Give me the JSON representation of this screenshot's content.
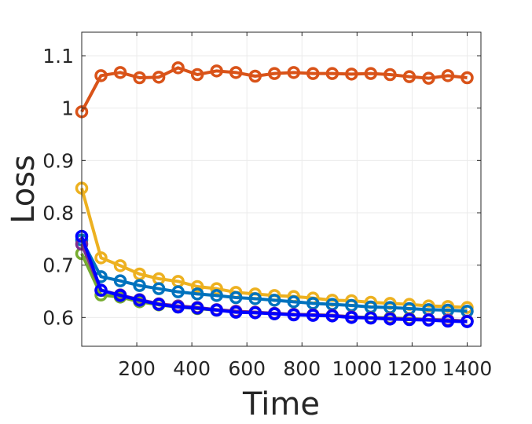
{
  "chart_data": {
    "type": "line",
    "title": "",
    "xlabel": "Time",
    "ylabel": "Loss",
    "xlim": [
      0,
      1450
    ],
    "ylim": [
      0.545,
      1.145
    ],
    "xticks": [
      200,
      400,
      600,
      800,
      1000,
      1200,
      1400
    ],
    "xtick_labels": [
      "200",
      "400",
      "600",
      "800",
      "1000",
      "1200",
      "1400"
    ],
    "yticks": [
      0.6,
      0.7,
      0.8,
      0.9,
      1.0,
      1.1
    ],
    "ytick_labels": [
      "0.6",
      "0.7",
      "0.8",
      "0.9",
      "1",
      "1.1"
    ],
    "grid": true,
    "legend": null,
    "x": [
      0,
      70,
      140,
      210,
      280,
      350,
      420,
      490,
      560,
      630,
      700,
      770,
      840,
      910,
      980,
      1050,
      1120,
      1190,
      1260,
      1330,
      1400
    ],
    "series": [
      {
        "color": "#D95319",
        "values": [
          0.993,
          1.062,
          1.068,
          1.058,
          1.059,
          1.077,
          1.064,
          1.071,
          1.068,
          1.061,
          1.066,
          1.068,
          1.066,
          1.066,
          1.065,
          1.066,
          1.064,
          1.06,
          1.057,
          1.062,
          1.058
        ]
      },
      {
        "color": "#EDB120",
        "values": [
          0.847,
          0.714,
          0.699,
          0.683,
          0.674,
          0.669,
          0.659,
          0.655,
          0.648,
          0.645,
          0.642,
          0.64,
          0.637,
          0.633,
          0.632,
          0.629,
          0.627,
          0.625,
          0.622,
          0.621,
          0.619
        ]
      },
      {
        "color": "#0072BD",
        "values": [
          0.748,
          0.678,
          0.67,
          0.661,
          0.655,
          0.649,
          0.645,
          0.642,
          0.638,
          0.636,
          0.633,
          0.63,
          0.627,
          0.625,
          0.623,
          0.62,
          0.619,
          0.617,
          0.615,
          0.614,
          0.612
        ]
      },
      {
        "color": "#77AC30",
        "values": [
          0.722,
          0.643,
          0.639,
          0.63,
          0.624,
          0.62,
          0.617,
          0.614,
          0.611,
          0.61,
          0.607,
          0.606,
          0.605,
          0.604,
          0.601,
          0.6,
          0.599,
          0.598,
          0.596,
          0.595,
          0.593
        ]
      },
      {
        "color": "#7E2F8E",
        "values": [
          0.74,
          0.652,
          0.643,
          0.634,
          0.626,
          0.622,
          0.619,
          0.615,
          0.612,
          0.61,
          0.608,
          0.606,
          0.605,
          0.604,
          0.601,
          0.599,
          0.598,
          0.597,
          0.596,
          0.595,
          0.593
        ]
      },
      {
        "color": "#0000FF",
        "values": [
          0.755,
          0.652,
          0.642,
          0.633,
          0.625,
          0.62,
          0.618,
          0.614,
          0.61,
          0.609,
          0.607,
          0.605,
          0.604,
          0.603,
          0.6,
          0.599,
          0.597,
          0.596,
          0.595,
          0.593,
          0.592
        ]
      }
    ]
  },
  "colors": {
    "axis": "#262626",
    "grid": "#ebebeb"
  }
}
